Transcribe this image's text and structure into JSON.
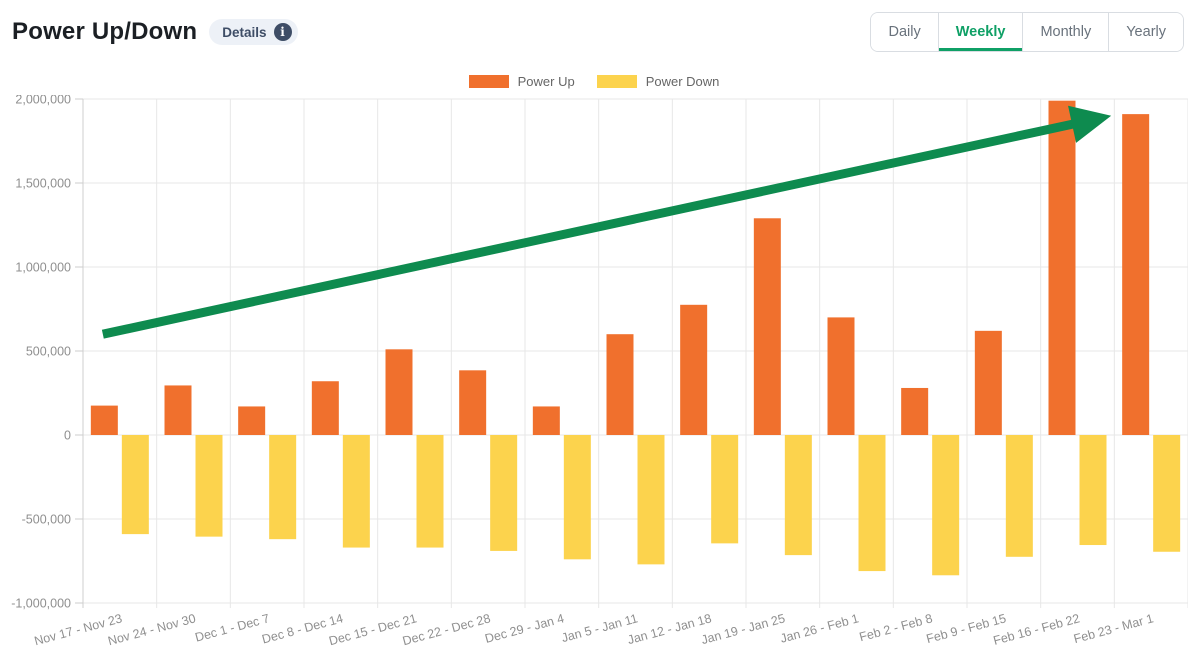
{
  "header": {
    "title": "Power Up/Down",
    "details_label": "Details"
  },
  "tabs": {
    "items": [
      {
        "id": "daily",
        "label": "Daily",
        "active": false
      },
      {
        "id": "weekly",
        "label": "Weekly",
        "active": true
      },
      {
        "id": "monthly",
        "label": "Monthly",
        "active": false
      },
      {
        "id": "yearly",
        "label": "Yearly",
        "active": false
      }
    ],
    "active_color": "#0fa066"
  },
  "chart_data": {
    "type": "bar",
    "title": "Power Up/Down",
    "categories": [
      "Nov 17 - Nov 23",
      "Nov 24 - Nov 30",
      "Dec 1 - Dec 7",
      "Dec 8 - Dec 14",
      "Dec 15 - Dec 21",
      "Dec 22 - Dec 28",
      "Dec 29 - Jan 4",
      "Jan 5 - Jan 11",
      "Jan 12 - Jan 18",
      "Jan 19 - Jan 25",
      "Jan 26 - Feb 1",
      "Feb 2 - Feb 8",
      "Feb 9 - Feb 15",
      "Feb 16 - Feb 22",
      "Feb 23 - Mar 1"
    ],
    "series": [
      {
        "name": "Power Up",
        "color": "#f0702d",
        "values": [
          175000,
          295000,
          170000,
          320000,
          510000,
          385000,
          170000,
          600000,
          775000,
          1290000,
          700000,
          280000,
          620000,
          1990000,
          1910000
        ]
      },
      {
        "name": "Power Down",
        "color": "#fcd34d",
        "values": [
          -590000,
          -605000,
          -620000,
          -670000,
          -670000,
          -690000,
          -740000,
          -770000,
          -645000,
          -715000,
          -810000,
          -835000,
          -725000,
          -655000,
          -695000
        ]
      }
    ],
    "ylim": [
      -1000000,
      2000000
    ],
    "ytick_step": 500000,
    "ytick_labels": [
      "2,000,000",
      "1,500,000",
      "1,000,000",
      "500,000",
      "0",
      "-500,000",
      "-1,000,000"
    ],
    "xlabel": "",
    "ylabel": "",
    "grid": true,
    "legend_position": "top",
    "annotation": {
      "type": "trend-arrow",
      "color": "#0e8b4f",
      "from": {
        "index": 0,
        "value": 600000
      },
      "to": {
        "index": 14,
        "value": 1900000
      }
    },
    "axis_text_color": "#8f8f8f",
    "grid_color": "#e7e7e7",
    "axis_line_color": "#cfcfcf"
  }
}
